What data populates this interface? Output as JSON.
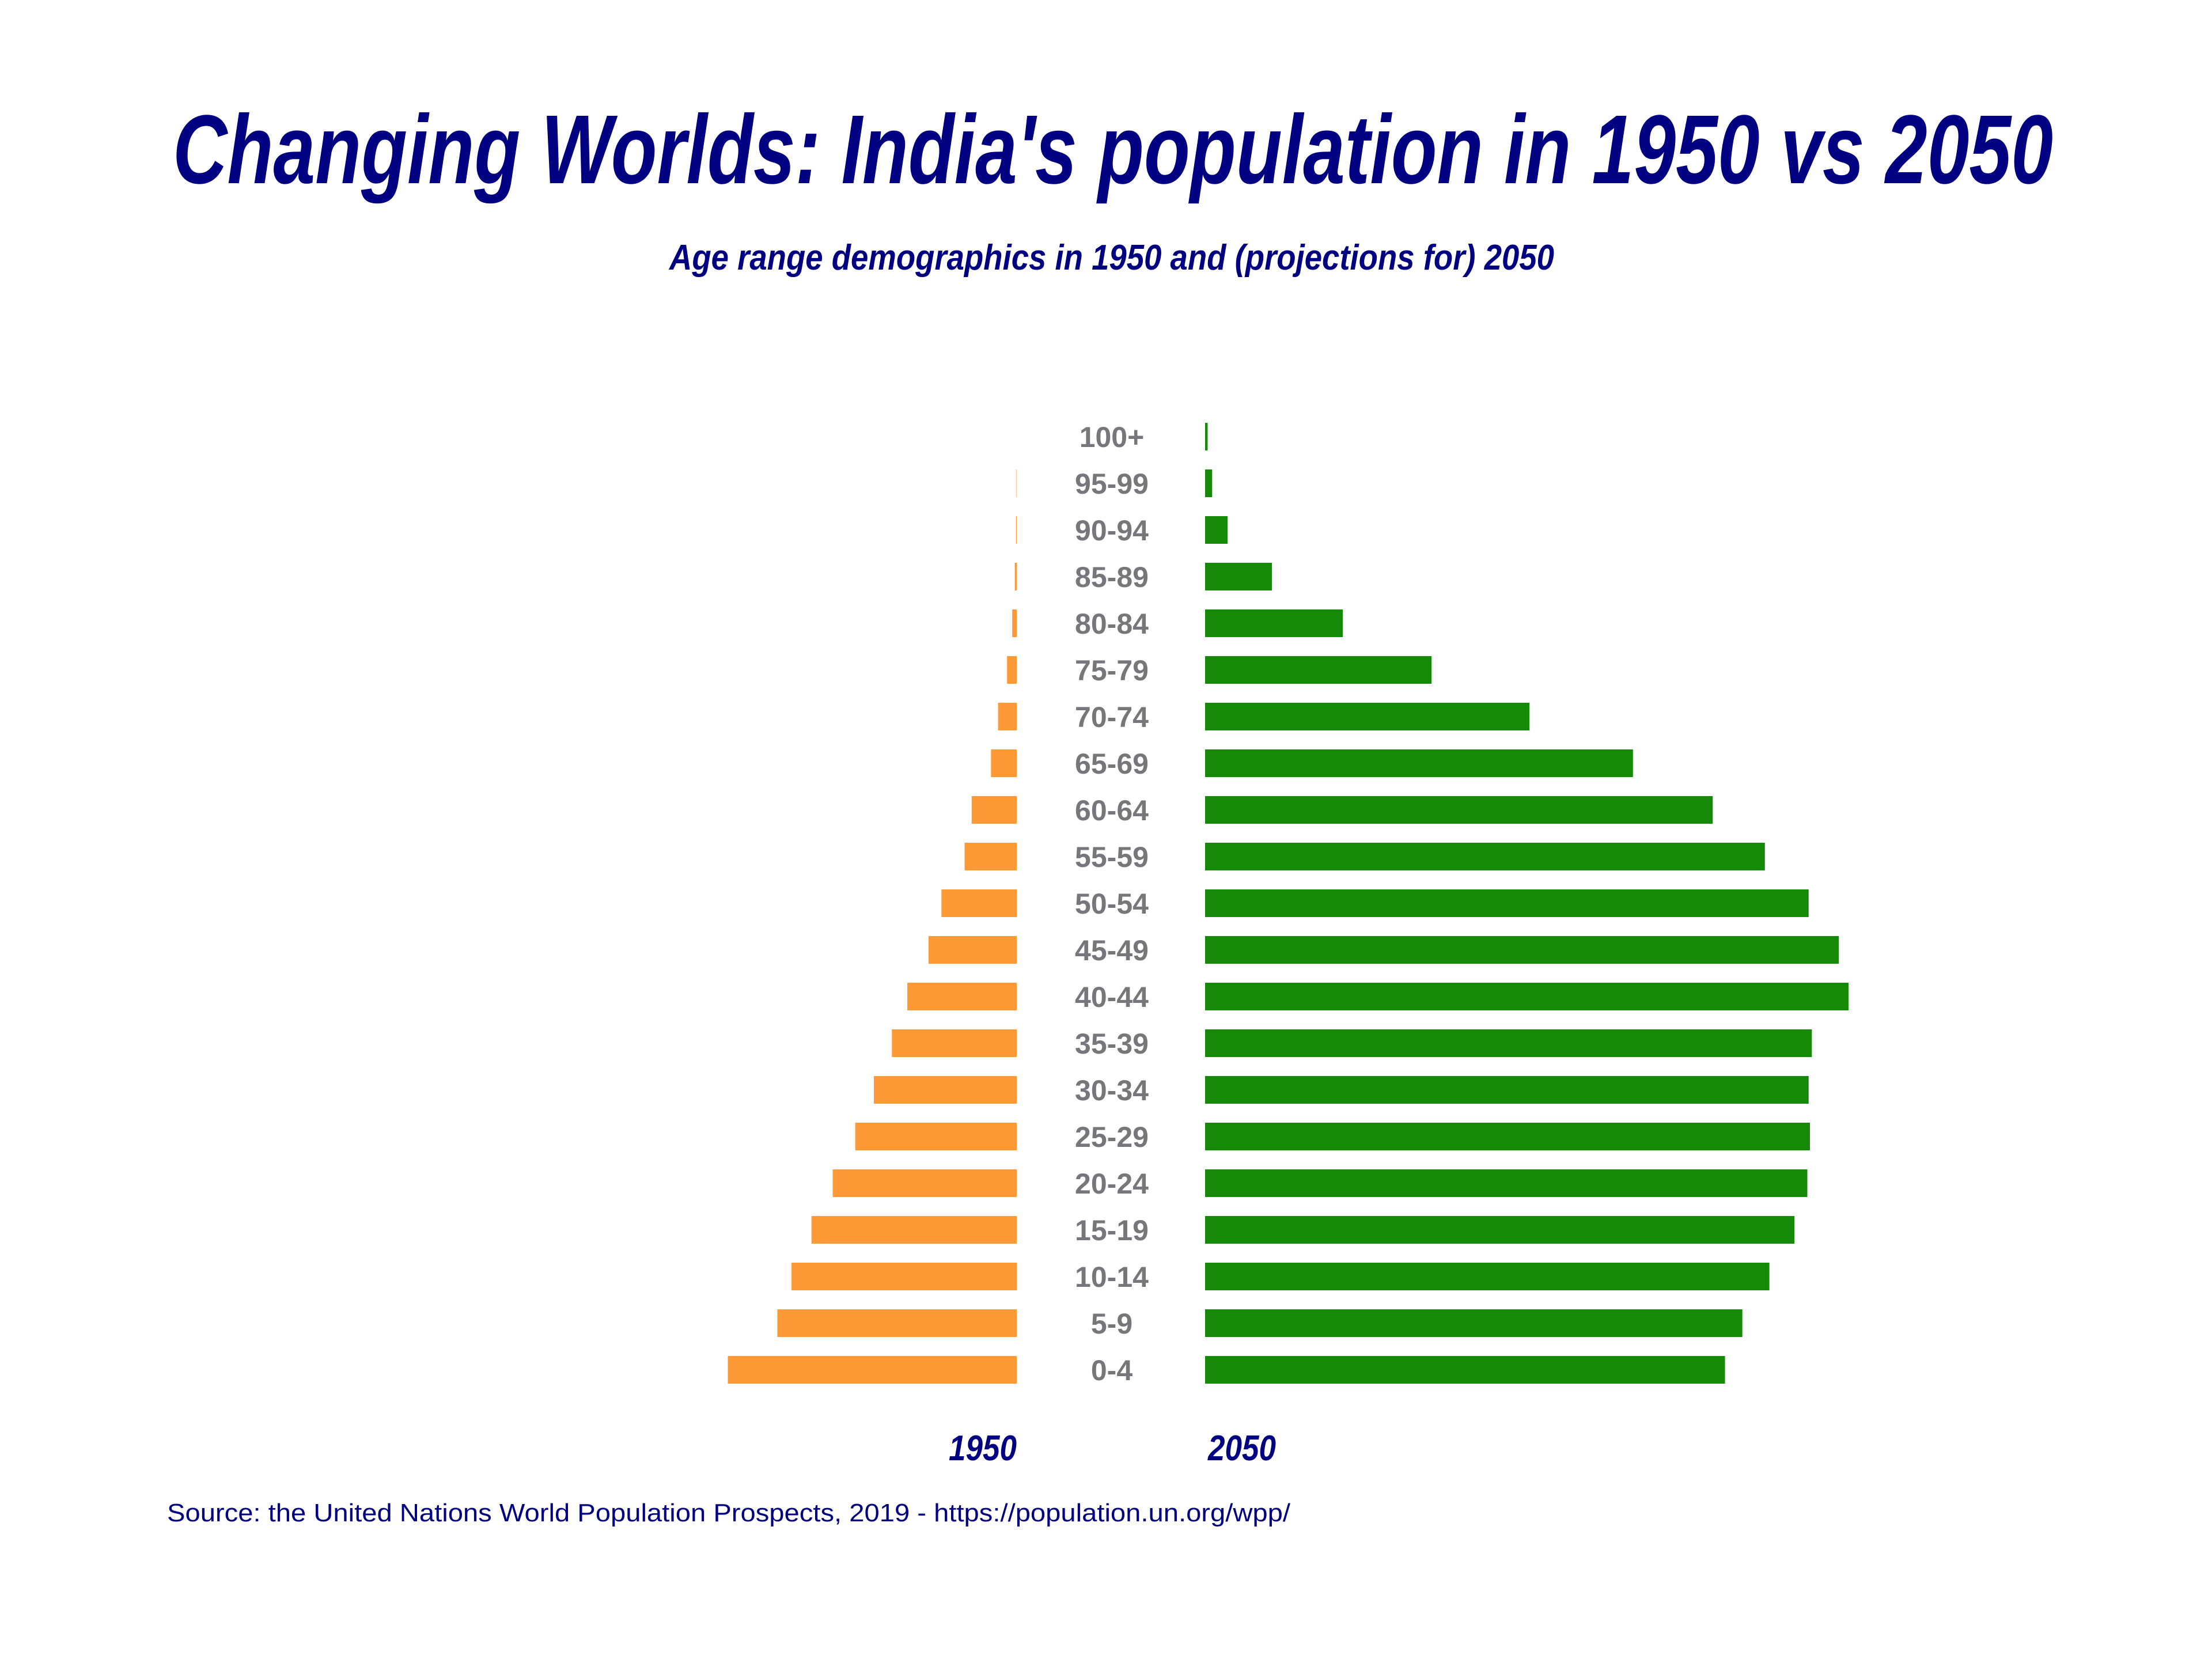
{
  "chart_data": {
    "type": "bar",
    "orientation": "horizontal",
    "layout": "population-pyramid",
    "title": "Changing Worlds: India's population in 1950 vs 2050",
    "subtitle": "Age range demographics in 1950 and (projections for) 2050",
    "source": "Source: the United Nations World Population Prospects, 2019 - https://population.un.org/wpp/",
    "categories": [
      "100+",
      "95-99",
      "90-94",
      "85-89",
      "80-84",
      "75-79",
      "70-74",
      "65-69",
      "60-64",
      "55-59",
      "50-54",
      "45-49",
      "40-44",
      "35-39",
      "30-34",
      "25-29",
      "20-24",
      "15-19",
      "10-14",
      "5-9",
      "0-4"
    ],
    "value_scale": "relative (largest bar = 100), no axis printed",
    "series": [
      {
        "name": "1950",
        "side": "left",
        "color": "#fd9a35",
        "values": [
          0,
          0.05,
          0.1,
          0.3,
          0.7,
          1.5,
          2.9,
          4.0,
          7.0,
          8.1,
          11.7,
          13.7,
          17.0,
          19.4,
          22.2,
          25.1,
          28.6,
          31.9,
          35.0,
          37.2,
          44.9
        ]
      },
      {
        "name": "2050",
        "side": "right",
        "color": "#168a08",
        "values": [
          0.4,
          1.1,
          3.5,
          10.4,
          21.4,
          35.2,
          50.4,
          66.5,
          78.9,
          87.0,
          93.8,
          98.5,
          100,
          94.3,
          93.8,
          94.0,
          93.6,
          91.6,
          87.7,
          83.5,
          80.8
        ]
      }
    ],
    "axes_visible": false,
    "grid": false,
    "legend": "bottom (year labels under each side)"
  }
}
